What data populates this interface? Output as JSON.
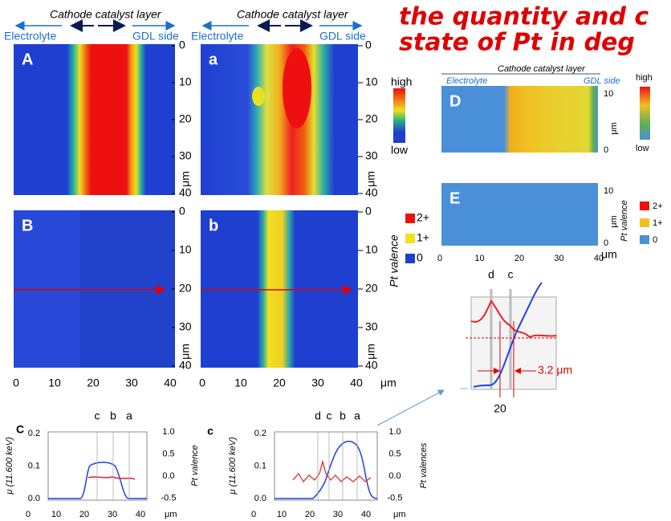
{
  "headline": [
    "the quantity and c",
    "state of Pt in deg"
  ],
  "map_header": {
    "layer": "Cathode catalyst layer",
    "left": "Electrolyte",
    "right": "GDL side"
  },
  "maps": [
    {
      "label": "A"
    },
    {
      "label": "a"
    },
    {
      "label": "B"
    },
    {
      "label": "b"
    }
  ],
  "map_y_ticks": [
    0,
    10,
    20,
    30,
    40
  ],
  "map_x_ticks": [
    0,
    10,
    20,
    30,
    40
  ],
  "unit": "μm",
  "intensity_legend": {
    "high": "high",
    "low": "low"
  },
  "valence_legend": {
    "title": "Pt valence",
    "levels": [
      "2+",
      "1+",
      "0"
    ]
  },
  "small_maps": {
    "labels": [
      "D",
      "E"
    ],
    "y_ticks": [
      0,
      10
    ],
    "x_ticks": [
      0,
      10,
      20,
      30,
      40
    ]
  },
  "zoom": {
    "labels": [
      "d",
      "c"
    ],
    "width": "3.2 μm",
    "x": "20"
  },
  "plots": [
    {
      "label": "C",
      "y_label": "μ (11.600 keV)",
      "y_ticks": [
        "0.2",
        "0.1",
        "0.0"
      ],
      "y2_label": "Pt valence",
      "y2_ticks": [
        "1.0",
        "0.5",
        "0.0",
        "-0.5"
      ],
      "x_ticks": [
        0,
        10,
        20,
        30,
        40
      ],
      "markers": [
        "c",
        "b",
        "a"
      ]
    },
    {
      "label": "c",
      "y_label": "μ (11.600 keV)",
      "y_ticks": [
        "0.2",
        "0.1",
        "0.0"
      ],
      "y2_label": "Pt valences",
      "y2_ticks": [
        "1.0",
        "0.5",
        "0.0",
        "-0.5"
      ],
      "x_ticks": [
        0,
        10,
        20,
        30,
        40
      ],
      "markers": [
        "d",
        "c",
        "b",
        "a"
      ]
    }
  ]
}
